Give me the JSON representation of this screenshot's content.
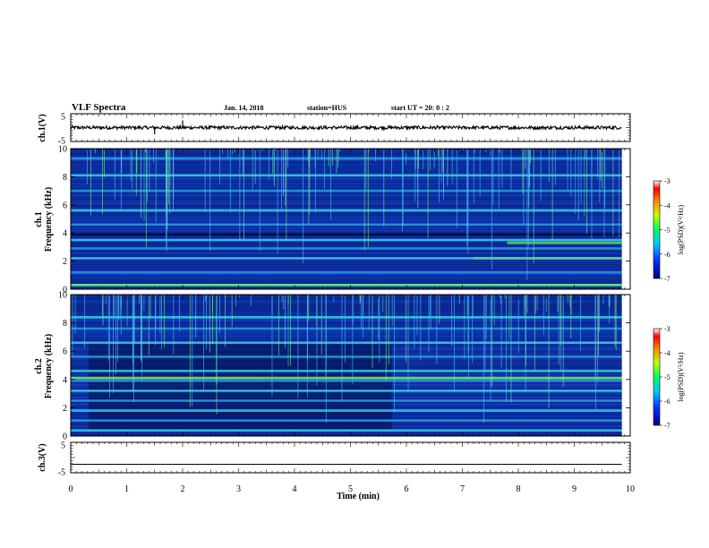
{
  "header": {
    "title": "VLF Spectra",
    "date": "Jan. 14, 2018",
    "station": "station=HUS",
    "start": "start  UT =   20: 0   : 2"
  },
  "chart_data": [
    {
      "type": "line",
      "panel": "ch1-waveform",
      "ylabel": "ch.1(V)",
      "ylim": [
        -5,
        5
      ],
      "yticks": [
        "5",
        "-5"
      ],
      "baseline": 0,
      "spikes": [
        {
          "x": 1.5,
          "y": -2.4
        },
        {
          "x": 2.0,
          "y": 2.6
        },
        {
          "x": 6.55,
          "y": 0.9
        }
      ]
    },
    {
      "type": "heatmap",
      "panel": "ch1-spectrogram",
      "ylabel": "ch.1\nFrequency (kHz)",
      "ylim": [
        0,
        10
      ],
      "yticks": [
        "0",
        "2",
        "4",
        "6",
        "8",
        "10"
      ],
      "bands_khz": [
        0.3,
        1.2,
        2.2,
        2.9,
        3.5,
        4.6,
        5.6,
        7.0,
        8.1,
        9.3
      ],
      "colorbar": {
        "label": "log(PSD)(V²/Hz)",
        "ticks": [
          "-3",
          "-4",
          "-5",
          "-6",
          "-7"
        ],
        "range": [
          -7,
          -3
        ]
      }
    },
    {
      "type": "heatmap",
      "panel": "ch2-spectrogram",
      "ylabel": "ch.2\nFrequency (kHz)",
      "ylim": [
        0,
        10
      ],
      "yticks": [
        "0",
        "2",
        "4",
        "6",
        "8",
        "10"
      ],
      "bands_khz": [
        0.4,
        1.1,
        1.8,
        2.5,
        3.2,
        3.9,
        4.6,
        5.6,
        6.6,
        7.6,
        8.4
      ],
      "colorbar": {
        "label": "log(PSD)(V²/Hz)",
        "ticks": [
          "-3",
          "-4",
          "-5",
          "-6",
          "-7"
        ],
        "range": [
          -7,
          -3
        ]
      }
    },
    {
      "type": "line",
      "panel": "ch3-waveform",
      "ylabel": "ch.3(V)",
      "ylim": [
        -5,
        5
      ],
      "yticks": [
        "5",
        "-5"
      ],
      "baseline": -2.2
    }
  ],
  "xaxis": {
    "label": "Time (min)",
    "range": [
      0,
      10
    ],
    "ticks": [
      "0",
      "1",
      "2",
      "3",
      "4",
      "5",
      "6",
      "7",
      "8",
      "9",
      "10"
    ],
    "data_end": 9.85
  },
  "colors": {
    "background": "#ffffff",
    "spectrogram_base": "#0a2aa8",
    "band": "#33c8e0",
    "line": "#000000"
  }
}
